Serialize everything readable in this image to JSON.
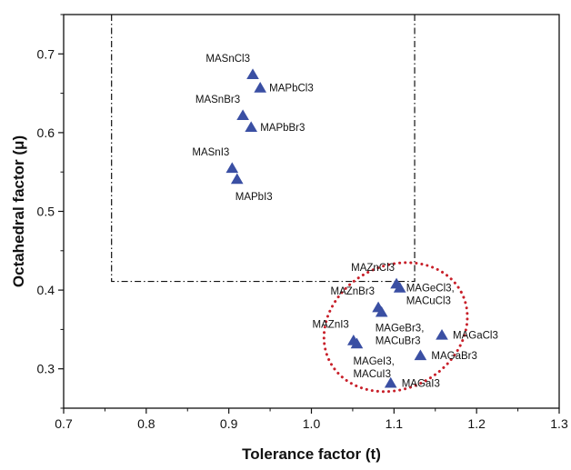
{
  "chart_data": {
    "type": "scatter",
    "title": "",
    "xlabel": "Tolerance factor (t)",
    "ylabel": "Octahedral factor (μ)",
    "xlim": [
      0.7,
      1.3
    ],
    "ylim": [
      0.25,
      0.75
    ],
    "x_ticks": [
      "0.7",
      "0.8",
      "0.9",
      "1.0",
      "1.1",
      "1.2",
      "1.3"
    ],
    "y_ticks": [
      "0.3",
      "0.4",
      "0.5",
      "0.6",
      "0.7"
    ],
    "grid": false,
    "legend": "none",
    "marker": "triangle",
    "marker_color": "#3a4fa3",
    "points": [
      {
        "label": "MASnCl3",
        "x": 0.929,
        "y": 0.674
      },
      {
        "label": "MAPbCl3",
        "x": 0.938,
        "y": 0.657
      },
      {
        "label": "MASnBr3",
        "x": 0.917,
        "y": 0.622
      },
      {
        "label": "MAPbBr3",
        "x": 0.927,
        "y": 0.607
      },
      {
        "label": "MASnI3",
        "x": 0.904,
        "y": 0.555
      },
      {
        "label": "MAPbI3",
        "x": 0.91,
        "y": 0.541
      },
      {
        "label": "MAZnCl3",
        "x": 1.103,
        "y": 0.408
      },
      {
        "label": "MAGeCl3,\nMACuCl3",
        "x": 1.107,
        "y": 0.403
      },
      {
        "label": "MAZnBr3",
        "x": 1.081,
        "y": 0.378
      },
      {
        "label": "MAGeBr3,\nMACuBr3",
        "x": 1.085,
        "y": 0.372
      },
      {
        "label": "MAZnI3",
        "x": 1.051,
        "y": 0.336
      },
      {
        "label": "MAGeI3,\nMACuI3",
        "x": 1.055,
        "y": 0.332
      },
      {
        "label": "MAGaCl3",
        "x": 1.158,
        "y": 0.343
      },
      {
        "label": "MAGaBr3",
        "x": 1.132,
        "y": 0.317
      },
      {
        "label": "MAGaI3",
        "x": 1.096,
        "y": 0.282
      }
    ],
    "annotations": [
      {
        "type": "dash-dot-region",
        "x_range": [
          0.758,
          1.125
        ],
        "y_range": [
          0.411,
          0.75
        ]
      },
      {
        "type": "dotted-ellipse",
        "color": "#c8202a",
        "center": [
          1.102,
          0.353
        ],
        "radii": [
          0.09,
          0.078
        ]
      }
    ]
  }
}
